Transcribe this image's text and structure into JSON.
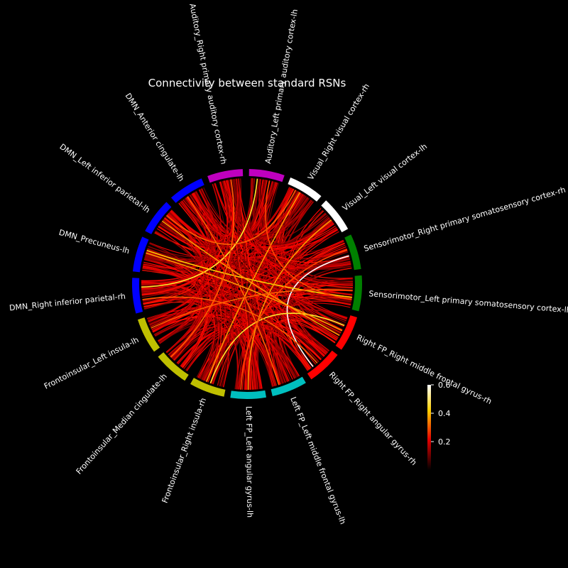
{
  "title": "Connectivity between standard RSNs",
  "colorbar": {
    "ticks": [
      {
        "value": 0.6,
        "label": "0.6"
      },
      {
        "value": 0.4,
        "label": "0.4"
      },
      {
        "value": 0.2,
        "label": "0.2"
      }
    ],
    "range": [
      0.0,
      0.6
    ],
    "colormap": "hot"
  },
  "network_colors": {
    "Auditory": "#bf00bf",
    "Visual": "#ffffff",
    "Sensorimotor": "#008000",
    "Right FP": "#ff0000",
    "Left FP": "#00bfbf",
    "Frontoinsular": "#bfbf00",
    "DMN": "#0000ff"
  },
  "nodes": [
    {
      "label": "Auditory_Left primary auditory cortex-lh",
      "network": "Auditory"
    },
    {
      "label": "Visual_Right visual cortex-rh",
      "network": "Visual"
    },
    {
      "label": "Visual_Left visual cortex-lh",
      "network": "Visual"
    },
    {
      "label": "Sensorimotor_Right primary somatosensory cortex-rh",
      "network": "Sensorimotor"
    },
    {
      "label": "Sensorimotor_Left primary somatosensory cortex-lh",
      "network": "Sensorimotor"
    },
    {
      "label": "Right FP_Right middle frontal gyrus-rh",
      "network": "Right FP"
    },
    {
      "label": "Right FP_Right angular gyrus-rh",
      "network": "Right FP"
    },
    {
      "label": "Left FP_Left middle frontal gyrus-lh",
      "network": "Left FP"
    },
    {
      "label": "Left FP_Left angular gyrus-lh",
      "network": "Left FP"
    },
    {
      "label": "Frontoinsular_Right insula-rh",
      "network": "Frontoinsular"
    },
    {
      "label": "Frontoinsular_Median cingulate-lh",
      "network": "Frontoinsular"
    },
    {
      "label": "Frontoinsular_Left insula-lh",
      "network": "Frontoinsular"
    },
    {
      "label": "DMN_Right inferior parietal-rh",
      "network": "DMN"
    },
    {
      "label": "DMN_Precuneus-lh",
      "network": "DMN"
    },
    {
      "label": "DMN_Left inferior parietal-lh",
      "network": "DMN"
    },
    {
      "label": "DMN_Anterior cingulate-lh",
      "network": "DMN"
    },
    {
      "label": "Auditory_Right primary auditory cortex-rh",
      "network": "Auditory"
    }
  ],
  "chart_data": {
    "type": "chord",
    "title": "Connectivity between standard RSNs",
    "nodes": [
      "Auditory_Left primary auditory cortex-lh",
      "Visual_Right visual cortex-rh",
      "Visual_Left visual cortex-lh",
      "Sensorimotor_Right primary somatosensory cortex-rh",
      "Sensorimotor_Left primary somatosensory cortex-lh",
      "Right FP_Right middle frontal gyrus-rh",
      "Right FP_Right angular gyrus-rh",
      "Left FP_Left middle frontal gyrus-lh",
      "Left FP_Left angular gyrus-lh",
      "Frontoinsular_Right insula-rh",
      "Frontoinsular_Median cingulate-lh",
      "Frontoinsular_Left insula-lh",
      "DMN_Right inferior parietal-rh",
      "DMN_Precuneus-lh",
      "DMN_Left inferior parietal-lh",
      "DMN_Anterior cingulate-lh",
      "Auditory_Right primary auditory cortex-rh"
    ],
    "colorbar_range": [
      0.0,
      0.6
    ],
    "strong_links": [
      {
        "source": "Sensorimotor_Right primary somatosensory cortex-rh",
        "target": "Right FP_Right angular gyrus-rh",
        "value": 0.6
      },
      {
        "source": "Auditory_Left primary auditory cortex-lh",
        "target": "DMN_Right inferior parietal-rh",
        "value": 0.45
      },
      {
        "source": "Right FP_Right middle frontal gyrus-rh",
        "target": "Frontoinsular_Right insula-rh",
        "value": 0.45
      },
      {
        "source": "DMN_Precuneus-lh",
        "target": "Sensorimotor_Left primary somatosensory cortex-lh",
        "value": 0.4
      },
      {
        "source": "DMN_Left inferior parietal-lh",
        "target": "Right FP_Right middle frontal gyrus-rh",
        "value": 0.35
      },
      {
        "source": "Visual_Right visual cortex-rh",
        "target": "Frontoinsular_Right insula-rh",
        "value": 0.35
      },
      {
        "source": "Visual_Left visual cortex-lh",
        "target": "Left FP_Left angular gyrus-lh",
        "value": 0.35
      },
      {
        "source": "DMN_Precuneus-lh",
        "target": "Right FP_Right middle frontal gyrus-rh",
        "value": 0.35
      },
      {
        "source": "Auditory_Right primary auditory cortex-rh",
        "target": "Frontoinsular_Median cingulate-lh",
        "value": 0.3
      },
      {
        "source": "Sensorimotor_Left primary somatosensory cortex-lh",
        "target": "Frontoinsular_Left insula-lh",
        "value": 0.3
      },
      {
        "source": "DMN_Right inferior parietal-rh",
        "target": "Right FP_Right angular gyrus-rh",
        "value": 0.3
      },
      {
        "source": "Visual_Right visual cortex-rh",
        "target": "DMN_Left inferior parietal-lh",
        "value": 0.3
      },
      {
        "source": "Left FP_Left middle frontal gyrus-lh",
        "target": "DMN_Anterior cingulate-lh",
        "value": 0.3
      },
      {
        "source": "Auditory_Left primary auditory cortex-lh",
        "target": "Sensorimotor_Left primary somatosensory cortex-lh",
        "value": 0.28
      },
      {
        "source": "Left FP_Left angular gyrus-lh",
        "target": "Sensorimotor_Right primary somatosensory cortex-rh",
        "value": 0.28
      }
    ]
  }
}
